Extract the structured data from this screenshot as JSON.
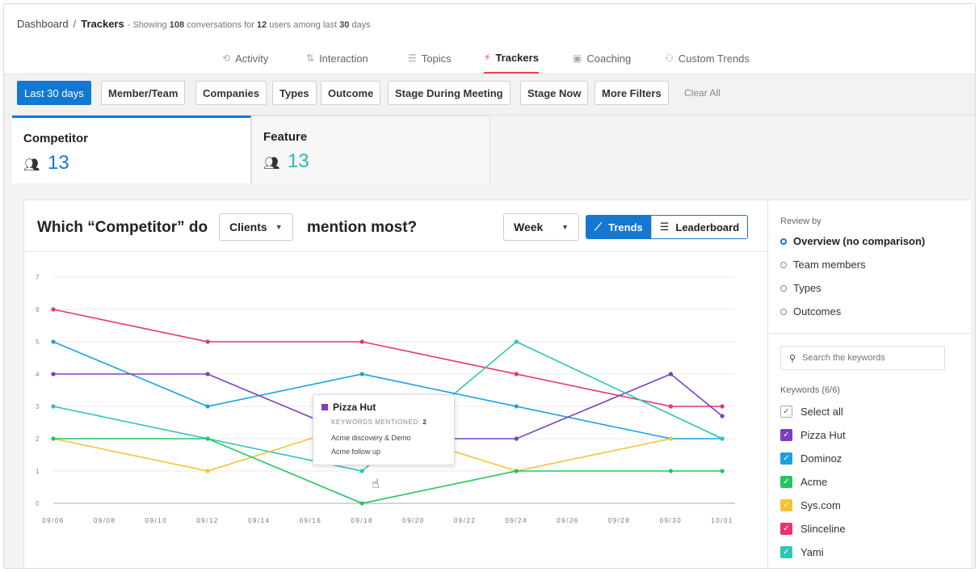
{
  "breadcrumb": {
    "root": "Dashboard",
    "separator": "/",
    "current": "Trackers",
    "subtitle_prefix": "- Showing",
    "conversations": "108",
    "mid1": "conversations for",
    "users": "12",
    "mid2": "users among last",
    "days": "30",
    "suffix": "days"
  },
  "nav_tabs": [
    {
      "label": "Activity",
      "icon": "activity-icon"
    },
    {
      "label": "Interaction",
      "icon": "interaction-icon"
    },
    {
      "label": "Topics",
      "icon": "topics-icon"
    },
    {
      "label": "Trackers",
      "icon": "trackers-icon",
      "active": true
    },
    {
      "label": "Coaching",
      "icon": "coaching-icon"
    },
    {
      "label": "Custom Trends",
      "icon": "custom-trends-icon"
    }
  ],
  "filters": {
    "date": "Last 30 days",
    "member_team": "Member/Team",
    "companies": "Companies",
    "types": "Types",
    "outcome": "Outcome",
    "stage_during": "Stage During Meeting",
    "stage_now": "Stage Now",
    "more": "More Filters",
    "clear": "Clear All"
  },
  "tracker_tabs": [
    {
      "name": "Competitor",
      "count": "13",
      "color": "#1478d2",
      "icon": "speaker-person-icon"
    },
    {
      "name": "Feature",
      "count": "13",
      "color": "#2cb9b4",
      "icon": "speaker-person-icon"
    }
  ],
  "question": {
    "prefix": "Which “Competitor” do",
    "dropdown": "Clients",
    "suffix": "mention most?"
  },
  "controls": {
    "period": "Week",
    "trends": "Trends",
    "leaderboard": "Leaderboard"
  },
  "tooltip": {
    "title": "Pizza Hut",
    "label": "KEYWORDS MENTIONED:",
    "count": "2",
    "items": [
      "Acme discovery & Demo",
      "Acme follow up"
    ]
  },
  "review_by": {
    "label": "Review by",
    "options": [
      "Overview (no comparison)",
      "Team members",
      "Types",
      "Outcomes"
    ],
    "selected": 0
  },
  "keywords": {
    "search_placeholder": "Search the keywords",
    "label": "Keywords (6/6)",
    "select_all": "Select all",
    "items": [
      {
        "name": "Pizza Hut",
        "color": "#7b3fbf"
      },
      {
        "name": "Dominoz",
        "color": "#1ba1e2"
      },
      {
        "name": "Acme",
        "color": "#22c55e"
      },
      {
        "name": "Sys.com",
        "color": "#f7c234"
      },
      {
        "name": "Slinceline",
        "color": "#e8336d"
      },
      {
        "name": "Yami",
        "color": "#2ec4b6"
      }
    ]
  },
  "chart_data": {
    "type": "line",
    "x_ticks": [
      "09/06",
      "09/08",
      "09/10",
      "09/12",
      "09/14",
      "09/16",
      "09/18",
      "09/20",
      "09/22",
      "09/24",
      "09/26",
      "09/28",
      "09/30",
      "10/01"
    ],
    "ylim": [
      0,
      7
    ],
    "y_ticks": [
      "0",
      "1",
      "2",
      "3",
      "4",
      "5",
      "6",
      "7"
    ],
    "grid": true,
    "series": [
      {
        "name": "Slinceline",
        "color": "#e8336d",
        "points": [
          [
            "09/06",
            6
          ],
          [
            "09/12",
            5
          ],
          [
            "09/18",
            5
          ],
          [
            "09/24",
            4
          ],
          [
            "09/30",
            3
          ],
          [
            "10/01",
            3
          ]
        ]
      },
      {
        "name": "Dominoz",
        "color": "#1ba1e2",
        "points": [
          [
            "09/06",
            5
          ],
          [
            "09/12",
            3
          ],
          [
            "09/18",
            4
          ],
          [
            "09/24",
            3
          ],
          [
            "09/30",
            2
          ],
          [
            "10/01",
            2
          ]
        ]
      },
      {
        "name": "Pizza Hut",
        "color": "#7b3fbf",
        "points": [
          [
            "09/06",
            4
          ],
          [
            "09/12",
            4
          ],
          [
            "09/18",
            2
          ],
          [
            "09/24",
            2
          ],
          [
            "09/30",
            4
          ],
          [
            "10/01",
            2.7
          ]
        ]
      },
      {
        "name": "Yami",
        "color": "#2ec4b6",
        "points": [
          [
            "09/06",
            3
          ],
          [
            "09/12",
            2
          ],
          [
            "09/18",
            1
          ],
          [
            "09/24",
            5
          ],
          [
            "10/01",
            2
          ]
        ]
      },
      {
        "name": "Sys.com",
        "color": "#f7c234",
        "points": [
          [
            "09/06",
            2
          ],
          [
            "09/12",
            1
          ],
          [
            "09/18",
            2.5
          ],
          [
            "09/24",
            1
          ],
          [
            "09/30",
            2
          ]
        ]
      },
      {
        "name": "Acme",
        "color": "#22c55e",
        "points": [
          [
            "09/06",
            2
          ],
          [
            "09/12",
            2
          ],
          [
            "09/18",
            0
          ],
          [
            "09/24",
            1
          ],
          [
            "09/30",
            1
          ],
          [
            "10/01",
            1
          ]
        ]
      }
    ]
  }
}
